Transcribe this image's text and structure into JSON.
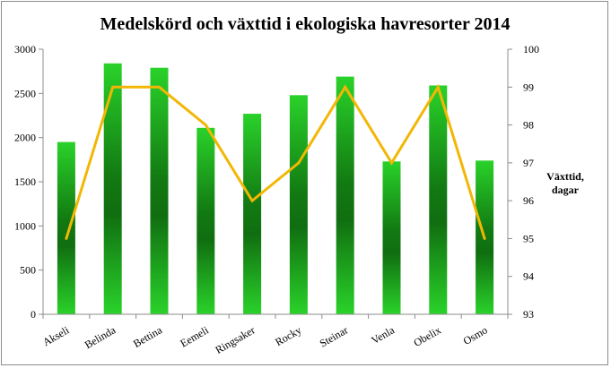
{
  "chart_data": {
    "type": "bar",
    "title": "Medelskörd och växttid i ekologiska havresorter 2014",
    "categories": [
      "Akseli",
      "Belinda",
      "Bettina",
      "Eemeli",
      "Ringsaker",
      "Rocky",
      "Steinar",
      "Venla",
      "Obelix",
      "Osmo"
    ],
    "series": [
      {
        "type": "bar",
        "axis": "left",
        "color": "#22b822",
        "values": [
          1950,
          2840,
          2790,
          2110,
          2270,
          2480,
          2690,
          1730,
          2590,
          1740
        ]
      },
      {
        "type": "line",
        "axis": "right",
        "color": "#f2b705",
        "values": [
          95,
          99,
          99,
          98,
          96,
          97,
          99,
          97,
          99,
          95
        ]
      }
    ],
    "y_left": {
      "min": 0,
      "max": 3000,
      "step": 500,
      "ticks": [
        "0",
        "500",
        "1000",
        "1500",
        "2000",
        "2500",
        "3000"
      ]
    },
    "y_right": {
      "min": 93,
      "max": 100,
      "step": 1,
      "ticks": [
        "93",
        "94",
        "95",
        "96",
        "97",
        "98",
        "99",
        "100"
      ],
      "label_lines": [
        "Växttid,",
        "dagar"
      ]
    },
    "grid": false,
    "legend": "none"
  }
}
